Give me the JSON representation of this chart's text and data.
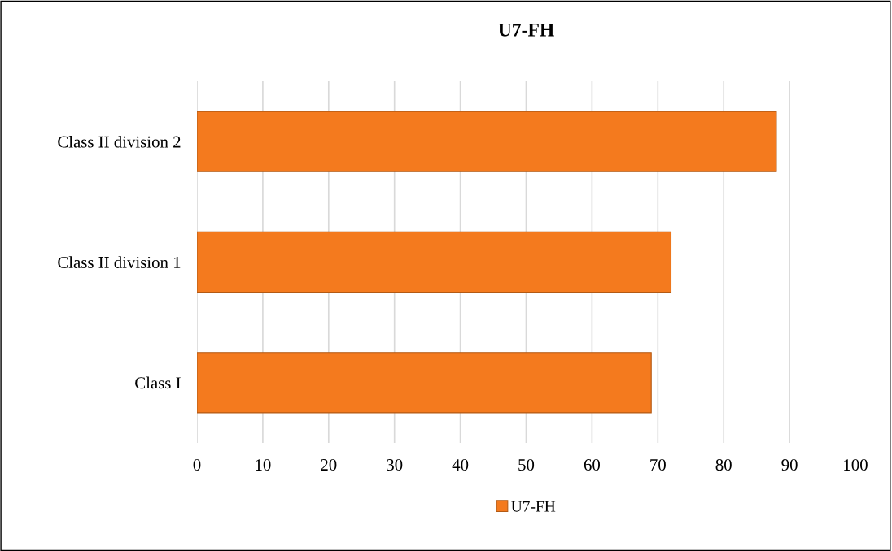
{
  "chart_data": {
    "type": "bar",
    "orientation": "horizontal",
    "title": "U7-FH",
    "categories": [
      "Class II division 2",
      "Class II division 1",
      "Class I"
    ],
    "series": [
      {
        "name": "U7-FH",
        "color": "#f47a1e",
        "values": [
          88,
          72,
          69
        ]
      }
    ],
    "xlim": [
      0,
      100
    ],
    "xticks": [
      0,
      10,
      20,
      30,
      40,
      50,
      60,
      70,
      80,
      90,
      100
    ],
    "grid": "x",
    "legend": "bottom"
  }
}
